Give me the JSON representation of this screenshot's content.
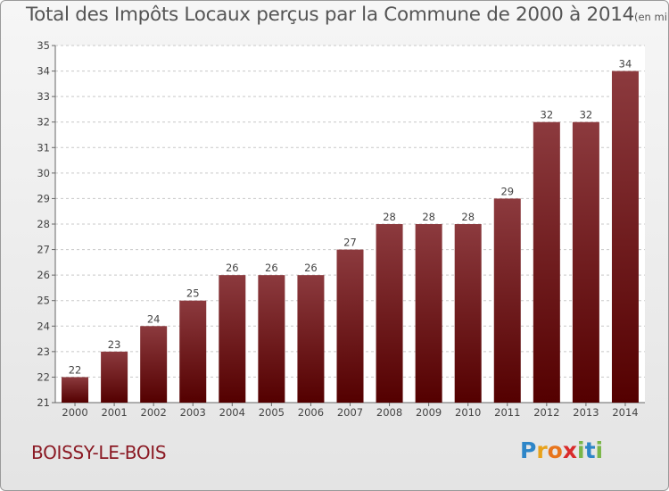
{
  "header": {
    "title": "Total des Impôts Locaux perçus par la Commune de 2000 à 2014",
    "unit": "(en milliers d'€)"
  },
  "footer": {
    "commune": "BOISSY-LE-BOIS",
    "brand": "Proxiti",
    "brand_colors": [
      "#2e86c8",
      "#e8a21c",
      "#e8751c",
      "#d92b2b",
      "#7ab648",
      "#2e86c8",
      "#7ab648"
    ]
  },
  "colors": {
    "bar_top": "#8c3a3e",
    "bar_bottom": "#540000",
    "grid": "#c8c8c8",
    "axis_text": "#444444",
    "commune": "#8b1a24"
  },
  "chart_data": {
    "type": "bar",
    "title": "Total des Impôts Locaux perçus par la Commune de 2000 à 2014",
    "categories": [
      "2000",
      "2001",
      "2002",
      "2003",
      "2004",
      "2005",
      "2006",
      "2007",
      "2008",
      "2009",
      "2010",
      "2011",
      "2012",
      "2013",
      "2014"
    ],
    "values": [
      22,
      23,
      24,
      25,
      26,
      26,
      26,
      27,
      28,
      28,
      28,
      29,
      32,
      32,
      34
    ],
    "ylim": [
      21,
      35
    ],
    "yticks": [
      21,
      22,
      23,
      24,
      25,
      26,
      27,
      28,
      29,
      30,
      31,
      32,
      33,
      34,
      35
    ],
    "grid": true,
    "data_labels": true
  }
}
